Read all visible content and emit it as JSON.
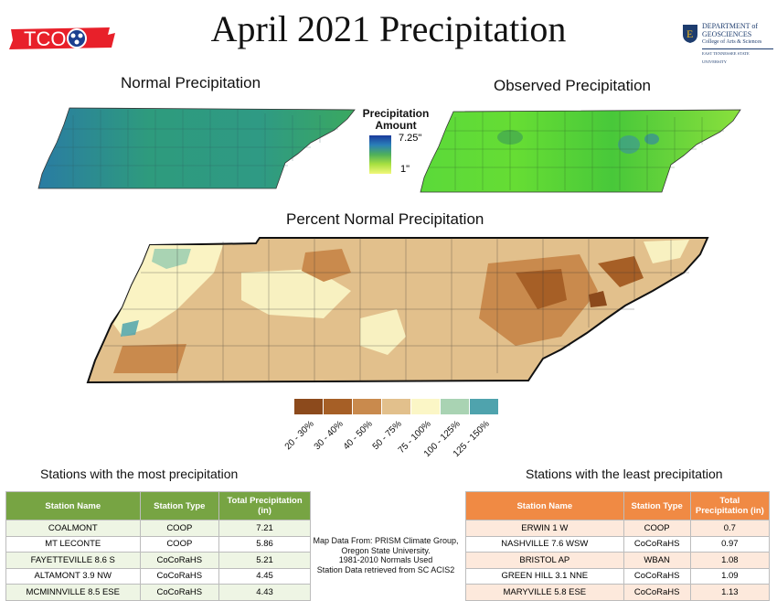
{
  "title": "April 2021 Precipitation",
  "logo_left": {
    "text": "TCO",
    "color": "#e8202a"
  },
  "logo_right": {
    "line1": "DEPARTMENT of",
    "line2": "GEOSCIENCES",
    "line3": "College of Arts & Sciences",
    "line4": "EAST TENNESSEE STATE UNIVERSITY"
  },
  "normal_map": {
    "title": "Normal Precipitation"
  },
  "observed_map": {
    "title": "Observed Precipitation"
  },
  "amount_legend": {
    "title_line1": "Precipitation",
    "title_line2": "Amount",
    "max_label": "7.25\"",
    "min_label": "1\""
  },
  "percent_map": {
    "title": "Percent Normal Precipitation"
  },
  "percent_legend": [
    {
      "label": "20 - 30%",
      "color": "#8c4a1c"
    },
    {
      "label": "30 - 40%",
      "color": "#a65f26"
    },
    {
      "label": "40 - 50%",
      "color": "#c98a4d"
    },
    {
      "label": "50 - 75%",
      "color": "#e2c08c"
    },
    {
      "label": "75 - 100%",
      "color": "#fbf6c6"
    },
    {
      "label": "100 - 125%",
      "color": "#a9d3b3"
    },
    {
      "label": "125 - 150%",
      "color": "#4fa3ad"
    }
  ],
  "most_stations": {
    "title": "Stations with the most precipitation",
    "headers": [
      "Station Name",
      "Station Type",
      "Total Precipitation (in)"
    ],
    "rows": [
      [
        "COALMONT",
        "COOP",
        "7.21"
      ],
      [
        "MT LECONTE",
        "COOP",
        "5.86"
      ],
      [
        "FAYETTEVILLE 8.6 S",
        "CoCoRaHS",
        "5.21"
      ],
      [
        "ALTAMONT 3.9 NW",
        "CoCoRaHS",
        "4.45"
      ],
      [
        "MCMINNVILLE 8.5 ESE",
        "CoCoRaHS",
        "4.43"
      ]
    ]
  },
  "least_stations": {
    "title": "Stations with the least precipitation",
    "headers": [
      "Station Name",
      "Station Type",
      "Total Precipitation (in)"
    ],
    "rows": [
      [
        "ERWIN 1 W",
        "COOP",
        "0.7"
      ],
      [
        "NASHVILLE 7.6 WSW",
        "CoCoRaHS",
        "0.97"
      ],
      [
        "BRISTOL AP",
        "WBAN",
        "1.08"
      ],
      [
        "GREEN HILL 3.1 NNE",
        "CoCoRaHS",
        "1.09"
      ],
      [
        "MARYVILLE 5.8 ESE",
        "CoCoRaHS",
        "1.13"
      ]
    ]
  },
  "source_note": {
    "line1": "Map Data From: PRISM Climate Group,",
    "line2": "Oregon State University.",
    "line3": "1981-2010 Normals Used",
    "line4": "Station Data retrieved from SC ACIS2"
  }
}
